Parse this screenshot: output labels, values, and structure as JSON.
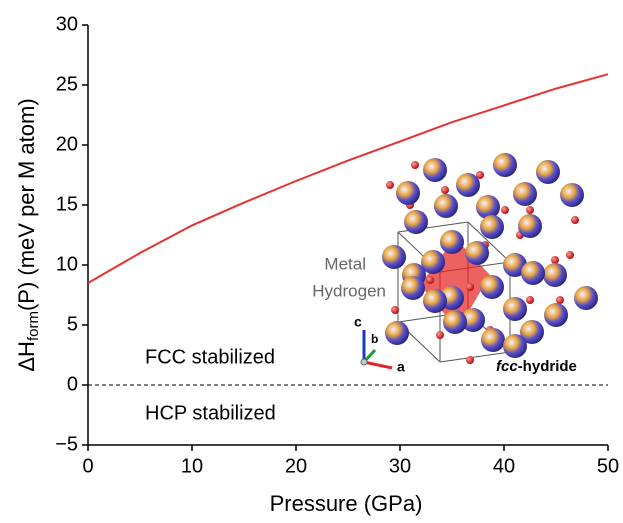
{
  "chart_data": {
    "type": "line",
    "xlabel": "Pressure (GPa)",
    "ylabel": [
      "ΔH",
      "form",
      "(P) (meV per M atom)"
    ],
    "x": [
      0,
      5,
      10,
      15,
      20,
      25,
      30,
      35,
      40,
      45,
      50
    ],
    "series": [
      {
        "color": "#e8312f",
        "values": [
          8.5,
          11.0,
          13.3,
          15.2,
          17.0,
          18.7,
          20.3,
          21.9,
          23.3,
          24.7,
          25.9
        ]
      }
    ],
    "xlim": [
      0,
      50
    ],
    "xticks": [
      0,
      10,
      20,
      30,
      40,
      50
    ],
    "ylim": [
      -5,
      30
    ],
    "yticks": [
      {
        "value": -5,
        "label": "−5"
      },
      0,
      5,
      10,
      15,
      20,
      25,
      30
    ],
    "hline": 0,
    "annotations": [
      "FCC stabilized",
      "HCP stabilized",
      "Metal",
      "Hydrogen"
    ],
    "inset_title": [
      "fcc",
      "-hydride"
    ],
    "axes_labels": [
      "a",
      "b",
      "c"
    ]
  }
}
